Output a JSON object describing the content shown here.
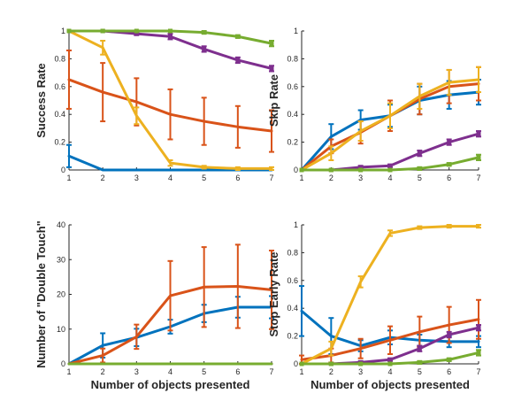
{
  "chart_data": [
    {
      "type": "line",
      "ylabel": "Success Rate",
      "xlabel": "",
      "xlim": [
        1,
        7
      ],
      "ylim": [
        0,
        1
      ],
      "xticks": [
        1,
        2,
        3,
        4,
        5,
        6,
        7
      ],
      "yticks": [
        0,
        0.2,
        0.4,
        0.6,
        0.8,
        1
      ],
      "ytick_labels": [
        "0",
        "0.2",
        "0.4",
        "0.6",
        "0.8",
        "1"
      ],
      "x": [
        1,
        2,
        3,
        4,
        5,
        6,
        7
      ],
      "series": [
        {
          "color": "#0072BD",
          "values": [
            0.1,
            0.0,
            0.0,
            0.0,
            0.0,
            0.0,
            0.0
          ],
          "err": [
            0.08,
            0.0,
            0.0,
            0.0,
            0.0,
            0.0,
            0.0
          ],
          "markers": false
        },
        {
          "color": "#D95319",
          "values": [
            0.65,
            0.56,
            0.49,
            0.4,
            0.35,
            0.31,
            0.28
          ],
          "err": [
            0.21,
            0.21,
            0.17,
            0.18,
            0.17,
            0.15,
            0.15
          ],
          "markers": false
        },
        {
          "color": "#EDB120",
          "values": [
            1.0,
            0.88,
            0.39,
            0.05,
            0.02,
            0.01,
            0.01
          ],
          "err": [
            0.0,
            0.05,
            0.06,
            0.02,
            0.01,
            0.01,
            0.01
          ],
          "markers": false
        },
        {
          "color": "#7E2F8E",
          "values": [
            1.0,
            1.0,
            0.98,
            0.96,
            0.87,
            0.79,
            0.73
          ],
          "err": [
            0.0,
            0.0,
            0.01,
            0.02,
            0.02,
            0.02,
            0.02
          ],
          "markers": true
        },
        {
          "color": "#77AC30",
          "values": [
            1.0,
            1.0,
            1.0,
            1.0,
            0.99,
            0.96,
            0.91
          ],
          "err": [
            0.0,
            0.0,
            0.0,
            0.0,
            0.01,
            0.01,
            0.02
          ],
          "markers": true
        }
      ]
    },
    {
      "type": "line",
      "ylabel": "Skip Rate",
      "xlabel": "",
      "xlim": [
        1,
        7
      ],
      "ylim": [
        0,
        1
      ],
      "xticks": [
        1,
        2,
        3,
        4,
        5,
        6,
        7
      ],
      "yticks": [
        0,
        0.2,
        0.4,
        0.6,
        0.8,
        1
      ],
      "ytick_labels": [
        "0",
        "0.2",
        "0.4",
        "0.6",
        "0.8",
        "1"
      ],
      "x": [
        1,
        2,
        3,
        4,
        5,
        6,
        7
      ],
      "series": [
        {
          "color": "#0072BD",
          "values": [
            0.0,
            0.24,
            0.36,
            0.39,
            0.5,
            0.54,
            0.56
          ],
          "err": [
            0.0,
            0.09,
            0.07,
            0.08,
            0.1,
            0.1,
            0.09
          ],
          "markers": false
        },
        {
          "color": "#D95319",
          "values": [
            0.0,
            0.17,
            0.27,
            0.39,
            0.51,
            0.6,
            0.62
          ],
          "err": [
            0.0,
            0.05,
            0.08,
            0.11,
            0.11,
            0.12,
            0.12
          ],
          "markers": false
        },
        {
          "color": "#EDB120",
          "values": [
            0.0,
            0.12,
            0.28,
            0.39,
            0.53,
            0.63,
            0.65
          ],
          "err": [
            0.0,
            0.05,
            0.07,
            0.09,
            0.09,
            0.09,
            0.09
          ],
          "markers": false
        },
        {
          "color": "#7E2F8E",
          "values": [
            0.0,
            0.0,
            0.02,
            0.03,
            0.12,
            0.2,
            0.26
          ],
          "err": [
            0.0,
            0.0,
            0.01,
            0.01,
            0.02,
            0.02,
            0.02
          ],
          "markers": true
        },
        {
          "color": "#77AC30",
          "values": [
            0.0,
            0.0,
            0.0,
            0.0,
            0.01,
            0.04,
            0.09
          ],
          "err": [
            0.0,
            0.0,
            0.0,
            0.0,
            0.01,
            0.01,
            0.02
          ],
          "markers": true
        }
      ]
    },
    {
      "type": "line",
      "ylabel": "Number of \"Double Touch\"",
      "xlabel": "Number of objects presented",
      "xlim": [
        1,
        7
      ],
      "ylim": [
        0,
        40
      ],
      "xticks": [
        1,
        2,
        3,
        4,
        5,
        6,
        7
      ],
      "yticks": [
        0,
        10,
        20,
        30,
        40
      ],
      "ytick_labels": [
        "0",
        "10",
        "20",
        "30",
        "40"
      ],
      "x": [
        1,
        2,
        3,
        4,
        5,
        6,
        7
      ],
      "series": [
        {
          "color": "#0072BD",
          "values": [
            0,
            5.3,
            7.6,
            10.7,
            14.5,
            16.3,
            16.3
          ],
          "err": [
            0,
            3.5,
            2.5,
            2.0,
            2.5,
            3.0,
            3.2
          ],
          "markers": false
        },
        {
          "color": "#D95319",
          "values": [
            0,
            2.4,
            7.8,
            19.6,
            22.1,
            22.3,
            21.3
          ],
          "err": [
            0,
            2.0,
            3.5,
            10.0,
            11.5,
            12.0,
            11.3
          ],
          "markers": false
        },
        {
          "color": "#EDB120",
          "values": [
            0,
            0,
            0,
            0,
            0,
            0,
            0
          ],
          "err": [
            0,
            0,
            0,
            0,
            0,
            0,
            0
          ],
          "markers": false
        },
        {
          "color": "#7E2F8E",
          "values": [
            0,
            0,
            0,
            0,
            0,
            0,
            0
          ],
          "err": [
            0,
            0,
            0,
            0,
            0,
            0,
            0
          ],
          "markers": false
        },
        {
          "color": "#77AC30",
          "values": [
            0,
            0,
            0,
            0,
            0,
            0,
            0
          ],
          "err": [
            0,
            0,
            0,
            0,
            0,
            0,
            0
          ],
          "markers": false
        }
      ]
    },
    {
      "type": "line",
      "ylabel": "Stop Early Rate",
      "xlabel": "Number of objects presented",
      "xlim": [
        1,
        7
      ],
      "ylim": [
        0,
        1
      ],
      "xticks": [
        1,
        2,
        3,
        4,
        5,
        6,
        7
      ],
      "yticks": [
        0,
        0.2,
        0.4,
        0.6,
        0.8,
        1
      ],
      "ytick_labels": [
        "0",
        "0.2",
        "0.4",
        "0.6",
        "0.8",
        "1"
      ],
      "x": [
        1,
        2,
        3,
        4,
        5,
        6,
        7
      ],
      "series": [
        {
          "color": "#0072BD",
          "values": [
            0.38,
            0.2,
            0.13,
            0.19,
            0.17,
            0.16,
            0.16
          ],
          "err": [
            0.18,
            0.13,
            0.04,
            0.05,
            0.04,
            0.04,
            0.04
          ],
          "markers": false
        },
        {
          "color": "#D95319",
          "values": [
            0.03,
            0.06,
            0.11,
            0.17,
            0.23,
            0.28,
            0.32
          ],
          "err": [
            0.03,
            0.05,
            0.07,
            0.1,
            0.11,
            0.13,
            0.14
          ],
          "markers": false
        },
        {
          "color": "#EDB120",
          "values": [
            0.0,
            0.11,
            0.59,
            0.94,
            0.98,
            0.99,
            0.99
          ],
          "err": [
            0.0,
            0.05,
            0.04,
            0.02,
            0.01,
            0.01,
            0.01
          ],
          "markers": false
        },
        {
          "color": "#7E2F8E",
          "values": [
            0.0,
            0.0,
            0.01,
            0.03,
            0.11,
            0.21,
            0.26
          ],
          "err": [
            0.0,
            0.0,
            0.01,
            0.01,
            0.02,
            0.02,
            0.02
          ],
          "markers": true
        },
        {
          "color": "#77AC30",
          "values": [
            0.0,
            0.0,
            0.0,
            0.0,
            0.01,
            0.03,
            0.08
          ],
          "err": [
            0.0,
            0.0,
            0.0,
            0.0,
            0.01,
            0.01,
            0.02
          ],
          "markers": true
        }
      ]
    }
  ]
}
